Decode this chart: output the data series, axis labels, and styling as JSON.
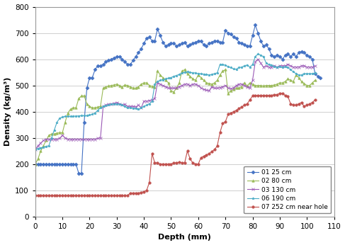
{
  "title": "",
  "xlabel": "Depth (mm)",
  "ylabel": "Density (kg/m³)",
  "xlim": [
    0,
    110
  ],
  "ylim": [
    0,
    800
  ],
  "xticks": [
    0,
    10,
    20,
    30,
    40,
    50,
    60,
    70,
    80,
    90,
    100,
    110
  ],
  "yticks": [
    0,
    100,
    200,
    300,
    400,
    500,
    600,
    700,
    800
  ],
  "series": [
    {
      "label": "01 25 cm",
      "color": "#4472C4",
      "marker": "D",
      "markersize": 2.5,
      "x": [
        0,
        1,
        2,
        3,
        4,
        5,
        6,
        7,
        8,
        9,
        10,
        11,
        12,
        13,
        14,
        15,
        16,
        17,
        18,
        19,
        20,
        21,
        22,
        23,
        24,
        25,
        26,
        27,
        28,
        29,
        30,
        31,
        32,
        33,
        34,
        35,
        36,
        37,
        38,
        39,
        40,
        41,
        42,
        43,
        44,
        45,
        46,
        47,
        48,
        49,
        50,
        51,
        52,
        53,
        54,
        55,
        56,
        57,
        58,
        59,
        60,
        61,
        62,
        63,
        64,
        65,
        66,
        67,
        68,
        69,
        70,
        71,
        72,
        73,
        74,
        75,
        76,
        77,
        78,
        79,
        80,
        81,
        82,
        83,
        84,
        85,
        86,
        87,
        88,
        89,
        90,
        91,
        92,
        93,
        94,
        95,
        96,
        97,
        98,
        99,
        100,
        101,
        102,
        103,
        104,
        105
      ],
      "y": [
        200,
        200,
        200,
        200,
        200,
        200,
        200,
        200,
        200,
        200,
        200,
        200,
        200,
        200,
        200,
        200,
        165,
        165,
        360,
        490,
        530,
        530,
        560,
        575,
        575,
        580,
        590,
        595,
        600,
        605,
        610,
        610,
        600,
        590,
        580,
        580,
        595,
        610,
        625,
        640,
        660,
        680,
        685,
        670,
        670,
        715,
        690,
        665,
        650,
        655,
        660,
        660,
        650,
        655,
        660,
        665,
        650,
        655,
        660,
        665,
        670,
        670,
        655,
        650,
        660,
        665,
        670,
        670,
        665,
        665,
        710,
        700,
        695,
        685,
        680,
        665,
        660,
        655,
        650,
        650,
        690,
        730,
        700,
        670,
        650,
        655,
        640,
        615,
        610,
        615,
        610,
        600,
        615,
        620,
        610,
        620,
        610,
        625,
        630,
        625,
        615,
        610,
        600,
        545,
        535,
        530
      ]
    },
    {
      "label": "02 80 cm",
      "color": "#9BBB59",
      "marker": "^",
      "markersize": 2.5,
      "x": [
        0,
        1,
        2,
        3,
        4,
        5,
        6,
        7,
        8,
        9,
        10,
        11,
        12,
        13,
        14,
        15,
        16,
        17,
        18,
        19,
        20,
        21,
        22,
        23,
        24,
        25,
        26,
        27,
        28,
        29,
        30,
        31,
        32,
        33,
        34,
        35,
        36,
        37,
        38,
        39,
        40,
        41,
        42,
        43,
        44,
        45,
        46,
        47,
        48,
        49,
        50,
        51,
        52,
        53,
        54,
        55,
        56,
        57,
        58,
        59,
        60,
        61,
        62,
        63,
        64,
        65,
        66,
        67,
        68,
        69,
        70,
        71,
        72,
        73,
        74,
        75,
        76,
        77,
        78,
        79,
        80,
        81,
        82,
        83,
        84,
        85,
        86,
        87,
        88,
        89,
        90,
        91,
        92,
        93,
        94,
        95,
        96,
        97,
        98,
        99,
        100,
        101,
        102,
        103
      ],
      "y": [
        200,
        220,
        250,
        270,
        290,
        310,
        315,
        315,
        318,
        320,
        320,
        360,
        395,
        410,
        415,
        415,
        450,
        460,
        460,
        430,
        420,
        415,
        415,
        418,
        420,
        490,
        495,
        498,
        500,
        502,
        505,
        500,
        495,
        502,
        500,
        495,
        490,
        490,
        495,
        505,
        510,
        510,
        500,
        497,
        495,
        555,
        540,
        530,
        520,
        510,
        480,
        475,
        490,
        510,
        555,
        560,
        545,
        535,
        525,
        520,
        540,
        530,
        520,
        510,
        508,
        505,
        510,
        520,
        540,
        555,
        560,
        470,
        480,
        485,
        490,
        490,
        495,
        510,
        498,
        510,
        505,
        500,
        500,
        500,
        498,
        500,
        500,
        500,
        502,
        505,
        510,
        510,
        515,
        525,
        520,
        515,
        540,
        530,
        515,
        507,
        500,
        500,
        510,
        520
      ]
    },
    {
      "label": "03 130 cm",
      "color": "#9B59B6",
      "marker": "x",
      "markersize": 2.5,
      "x": [
        0,
        1,
        2,
        3,
        4,
        5,
        6,
        7,
        8,
        9,
        10,
        11,
        12,
        13,
        14,
        15,
        16,
        17,
        18,
        19,
        20,
        21,
        22,
        23,
        24,
        25,
        26,
        27,
        28,
        29,
        30,
        31,
        32,
        33,
        34,
        35,
        36,
        37,
        38,
        39,
        40,
        41,
        42,
        43,
        44,
        45,
        46,
        47,
        48,
        49,
        50,
        51,
        52,
        53,
        54,
        55,
        56,
        57,
        58,
        59,
        60,
        61,
        62,
        63,
        64,
        65,
        66,
        67,
        68,
        69,
        70,
        71,
        72,
        73,
        74,
        75,
        76,
        77,
        78,
        79,
        80,
        81,
        82,
        83,
        84,
        85,
        86,
        87,
        88,
        89,
        90,
        91,
        92,
        93,
        94,
        95,
        96,
        97,
        98,
        99,
        100,
        101,
        102,
        103
      ],
      "y": [
        255,
        270,
        280,
        290,
        295,
        295,
        295,
        295,
        295,
        298,
        310,
        300,
        295,
        295,
        295,
        295,
        295,
        295,
        295,
        295,
        295,
        295,
        295,
        298,
        300,
        420,
        425,
        428,
        430,
        432,
        435,
        430,
        425,
        428,
        420,
        420,
        420,
        418,
        425,
        415,
        440,
        440,
        442,
        445,
        450,
        510,
        505,
        500,
        495,
        490,
        490,
        490,
        490,
        495,
        500,
        505,
        505,
        500,
        505,
        505,
        500,
        490,
        485,
        482,
        480,
        495,
        490,
        490,
        492,
        495,
        500,
        490,
        488,
        490,
        500,
        505,
        505,
        500,
        495,
        490,
        520,
        590,
        600,
        585,
        570,
        575,
        570,
        570,
        575,
        570,
        575,
        575,
        575,
        580,
        575,
        570,
        570,
        570,
        575,
        575,
        570,
        570,
        570,
        575
      ]
    },
    {
      "label": "06 190 cm",
      "color": "#4BACC6",
      "marker": "*",
      "markersize": 2.5,
      "x": [
        0,
        1,
        2,
        3,
        4,
        5,
        6,
        7,
        8,
        9,
        10,
        11,
        12,
        13,
        14,
        15,
        16,
        17,
        18,
        19,
        20,
        21,
        22,
        23,
        24,
        25,
        26,
        27,
        28,
        29,
        30,
        31,
        32,
        33,
        34,
        35,
        36,
        37,
        38,
        39,
        40,
        41,
        42,
        43,
        44,
        45,
        46,
        47,
        48,
        49,
        50,
        51,
        52,
        53,
        54,
        55,
        56,
        57,
        58,
        59,
        60,
        61,
        62,
        63,
        64,
        65,
        66,
        67,
        68,
        69,
        70,
        71,
        72,
        73,
        74,
        75,
        76,
        77,
        78,
        79,
        80,
        81,
        82,
        83,
        84,
        85,
        86,
        87,
        88,
        89,
        90,
        91,
        92,
        93,
        94,
        95,
        96,
        97,
        98,
        99,
        100,
        101,
        102,
        103
      ],
      "y": [
        255,
        260,
        262,
        265,
        268,
        270,
        300,
        330,
        360,
        375,
        380,
        382,
        382,
        382,
        383,
        383,
        384,
        385,
        385,
        385,
        388,
        390,
        395,
        405,
        415,
        420,
        423,
        425,
        428,
        430,
        430,
        428,
        425,
        420,
        415,
        415,
        413,
        412,
        410,
        415,
        420,
        425,
        430,
        440,
        505,
        515,
        520,
        522,
        525,
        528,
        530,
        535,
        538,
        542,
        548,
        550,
        552,
        550,
        548,
        548,
        545,
        545,
        543,
        542,
        540,
        542,
        545,
        548,
        580,
        580,
        577,
        572,
        568,
        563,
        562,
        568,
        570,
        575,
        578,
        570,
        580,
        610,
        620,
        615,
        610,
        585,
        580,
        578,
        572,
        570,
        572,
        570,
        572,
        568,
        560,
        552,
        545,
        540,
        540,
        545,
        545,
        545,
        545,
        548
      ]
    },
    {
      "label": "07 252 cm near hole",
      "color": "#C0504D",
      "marker": "o",
      "markersize": 2.5,
      "x": [
        0,
        1,
        2,
        3,
        4,
        5,
        6,
        7,
        8,
        9,
        10,
        11,
        12,
        13,
        14,
        15,
        16,
        17,
        18,
        19,
        20,
        21,
        22,
        23,
        24,
        25,
        26,
        27,
        28,
        29,
        30,
        31,
        32,
        33,
        34,
        35,
        36,
        37,
        38,
        39,
        40,
        41,
        42,
        43,
        44,
        45,
        46,
        47,
        48,
        49,
        50,
        51,
        52,
        53,
        54,
        55,
        56,
        57,
        58,
        59,
        60,
        61,
        62,
        63,
        64,
        65,
        66,
        67,
        68,
        69,
        70,
        71,
        72,
        73,
        74,
        75,
        76,
        77,
        78,
        79,
        80,
        81,
        82,
        83,
        84,
        85,
        86,
        87,
        88,
        89,
        90,
        91,
        92,
        93,
        94,
        95,
        96,
        97,
        98,
        99,
        100,
        101,
        102,
        103
      ],
      "y": [
        80,
        80,
        80,
        80,
        80,
        80,
        80,
        80,
        80,
        80,
        80,
        80,
        80,
        80,
        80,
        80,
        80,
        80,
        80,
        80,
        80,
        80,
        80,
        80,
        80,
        80,
        80,
        80,
        80,
        80,
        80,
        80,
        80,
        80,
        80,
        90,
        90,
        90,
        90,
        92,
        95,
        100,
        130,
        240,
        205,
        205,
        200,
        200,
        200,
        200,
        200,
        205,
        205,
        207,
        205,
        205,
        250,
        220,
        205,
        200,
        200,
        225,
        230,
        235,
        240,
        248,
        255,
        270,
        320,
        355,
        362,
        390,
        395,
        400,
        405,
        412,
        418,
        425,
        430,
        445,
        460,
        462,
        462,
        462,
        462,
        462,
        462,
        462,
        465,
        465,
        470,
        470,
        462,
        458,
        430,
        425,
        425,
        430,
        435,
        420,
        425,
        430,
        435,
        445
      ]
    }
  ],
  "legend_loc": "lower right",
  "background_color": "#FFFFFF",
  "grid_color": "#C8C8C8",
  "linewidth": 0.8
}
